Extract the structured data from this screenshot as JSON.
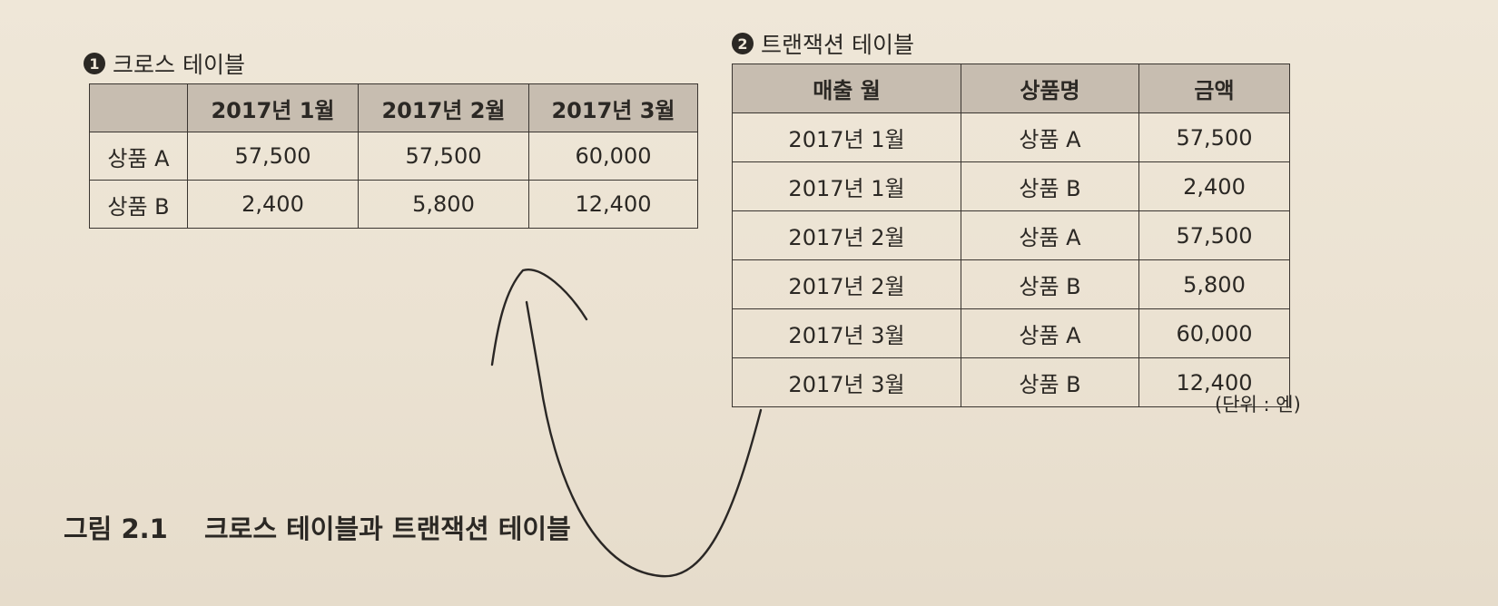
{
  "cross_table": {
    "badge": "❶",
    "title": "크로스 테이블",
    "headers": [
      "",
      "2017년 1월",
      "2017년 2월",
      "2017년 3월"
    ],
    "rows": [
      [
        "상품 A",
        "57,500",
        "57,500",
        "60,000"
      ],
      [
        "상품 B",
        "2,400",
        "5,800",
        "12,400"
      ]
    ]
  },
  "transaction_table": {
    "badge": "❷",
    "title": "트랜잭션 테이블",
    "headers": [
      "매출 월",
      "상품명",
      "금액"
    ],
    "rows": [
      [
        "2017년 1월",
        "상품 A",
        "57,500"
      ],
      [
        "2017년 1월",
        "상품 B",
        "2,400"
      ],
      [
        "2017년 2월",
        "상품 A",
        "57,500"
      ],
      [
        "2017년 2월",
        "상품 B",
        "5,800"
      ],
      [
        "2017년 3월",
        "상품 A",
        "60,000"
      ],
      [
        "2017년 3월",
        "상품 B",
        "12,400"
      ]
    ],
    "unit_note": "(단위 : 엔)"
  },
  "caption": {
    "label": "그림 2.1",
    "text": "크로스 테이블과 트랜잭션 테이블"
  }
}
